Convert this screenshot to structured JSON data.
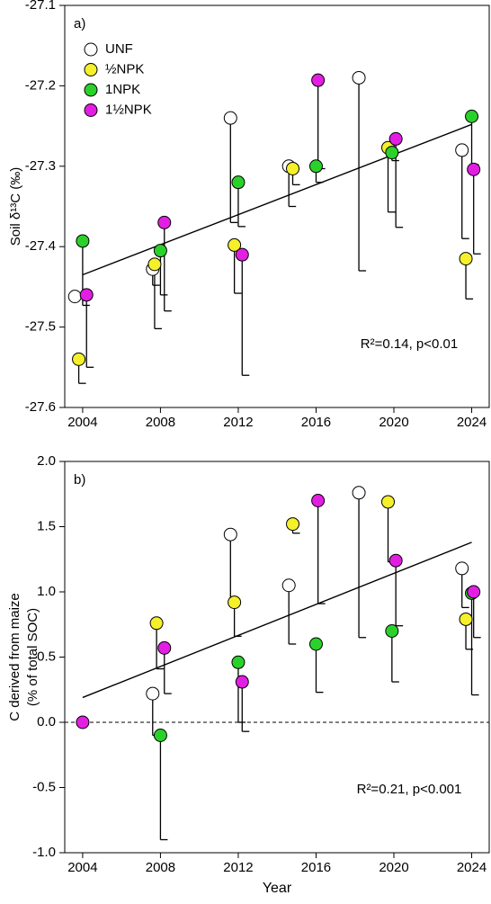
{
  "chart_data": [
    {
      "type": "scatter",
      "panel_label": "a)",
      "ylabel": "Soil δ¹³C (‰)",
      "annotation": "R²=0.14, p<0.01",
      "xlim": [
        2003.08,
        2024.9
      ],
      "xticks": [
        2004,
        2008,
        2012,
        2016,
        2020,
        2024
      ],
      "ylim": [
        -27.6,
        -27.1
      ],
      "yticks": [
        -27.6,
        -27.5,
        -27.4,
        -27.3,
        -27.2,
        -27.1
      ],
      "series": [
        {
          "name": "UNF",
          "color": "#ffffff",
          "x": [
            2003.6,
            2007.6,
            2011.6,
            2014.6,
            2018.2,
            2023.5
          ],
          "values": [
            -27.462,
            -27.428,
            -27.24,
            -27.3,
            -27.19,
            -27.28
          ],
          "errors": [
            null,
            0.02,
            0.13,
            0.05,
            0.24,
            0.11
          ]
        },
        {
          "name": "½NPK",
          "color": "#f5f02a",
          "x": [
            2003.8,
            2007.7,
            2011.8,
            2014.8,
            2019.7,
            2023.7
          ],
          "values": [
            -27.54,
            -27.422,
            -27.398,
            -27.303,
            -27.277,
            -27.415
          ],
          "errors": [
            0.03,
            0.08,
            0.06,
            0.02,
            0.08,
            0.05
          ]
        },
        {
          "name": "1NPK",
          "color": "#2bd12b",
          "x": [
            2004.0,
            2008.0,
            2012.0,
            2016.0,
            2019.9,
            2024.0
          ],
          "values": [
            -27.393,
            -27.405,
            -27.32,
            -27.3,
            -27.283,
            -27.238
          ],
          "errors": [
            0.08,
            0.055,
            0.055,
            0.02,
            0.01,
            0.06
          ]
        },
        {
          "name": "1½NPK",
          "color": "#e31ee3",
          "x": [
            2004.2,
            2008.2,
            2012.2,
            2016.1,
            2020.1,
            2024.1
          ],
          "values": [
            -27.46,
            -27.37,
            -27.41,
            -27.193,
            -27.266,
            -27.304
          ],
          "errors": [
            0.09,
            0.11,
            0.15,
            0.11,
            0.11,
            0.105
          ]
        }
      ],
      "trend": {
        "x": [
          2004,
          2024
        ],
        "values": [
          -27.435,
          -27.248
        ]
      }
    },
    {
      "type": "scatter",
      "panel_label": "b)",
      "ylabel": [
        "C derived from maize",
        "(% of total SOC)"
      ],
      "xlabel": "Year",
      "annotation": "R²=0.21, p<0.001",
      "xlim": [
        2003.08,
        2024.9
      ],
      "xticks": [
        2004,
        2008,
        2012,
        2016,
        2020,
        2024
      ],
      "ylim": [
        -1.0,
        2.0
      ],
      "yticks": [
        {
          "value": -1.0,
          "label": "-1.0"
        },
        -0.5,
        {
          "value": 0.0,
          "label": "0.0"
        },
        0.5,
        {
          "value": 1.0,
          "label": "1.0"
        },
        1.5,
        {
          "value": 2.0,
          "label": "2.0"
        }
      ],
      "hline": 0,
      "series": [
        {
          "color": "#ffffff",
          "x": [
            null,
            2007.6,
            2011.6,
            2014.6,
            2018.2,
            2023.5
          ],
          "values": [
            null,
            0.22,
            1.44,
            1.05,
            1.76,
            1.18
          ],
          "errors": [
            null,
            0.32,
            0.54,
            0.45,
            1.11,
            0.3
          ]
        },
        {
          "color": "#f5f02a",
          "x": [
            null,
            2007.8,
            2011.8,
            2014.8,
            2019.7,
            2023.7
          ],
          "values": [
            null,
            0.76,
            0.92,
            1.52,
            1.69,
            0.79
          ],
          "errors": [
            null,
            0.35,
            0.26,
            0.07,
            0.46,
            0.23
          ]
        },
        {
          "color": "#2bd12b",
          "x": [
            null,
            2008.0,
            2012.0,
            2016.0,
            2019.9,
            2024.0
          ],
          "values": [
            null,
            -0.1,
            0.46,
            0.6,
            0.7,
            0.99
          ],
          "errors": [
            null,
            0.8,
            0.46,
            0.37,
            0.39,
            0.78
          ]
        },
        {
          "color": "#e31ee3",
          "x": [
            2004.0,
            2008.2,
            2012.2,
            2016.1,
            2020.1,
            2024.1
          ],
          "values": [
            0.0,
            0.57,
            0.31,
            1.7,
            1.24,
            1.0
          ],
          "errors": [
            null,
            0.35,
            0.38,
            0.79,
            0.5,
            0.35
          ]
        }
      ],
      "trend": {
        "x": [
          2004,
          2024
        ],
        "values": [
          0.19,
          1.38
        ]
      }
    }
  ]
}
